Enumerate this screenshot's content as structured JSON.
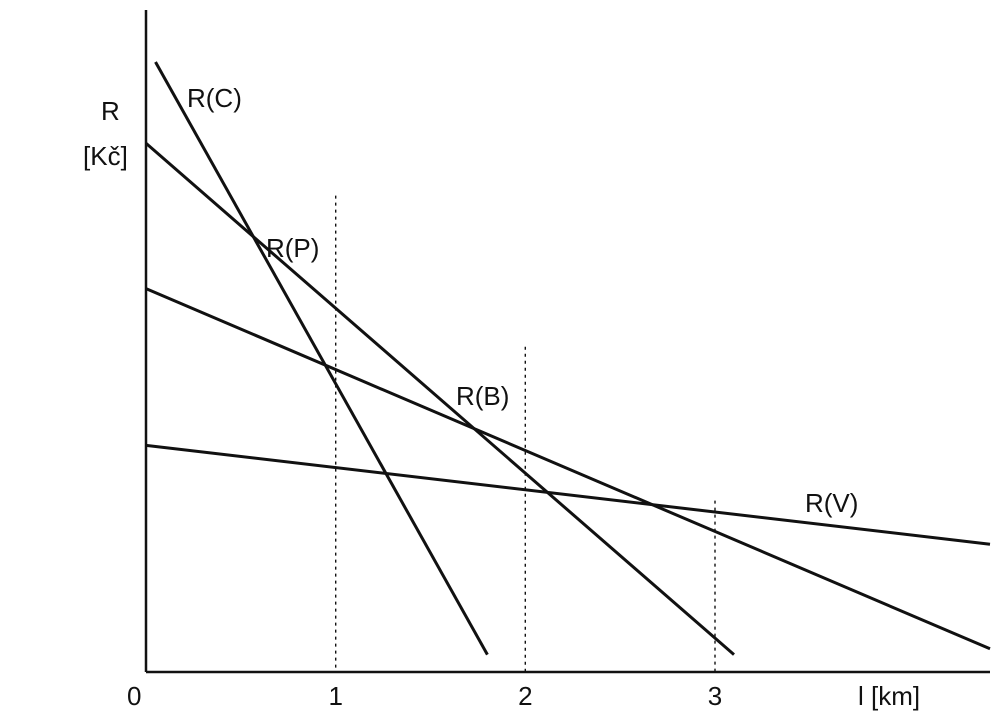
{
  "chart_data": {
    "type": "line",
    "title": "",
    "ylabel_line1": "R",
    "ylabel_line2": "[Kč]",
    "xlabel": "l  [km]",
    "origin_label": "0",
    "x_ticks": [
      {
        "value": 1,
        "label": "1"
      },
      {
        "value": 2,
        "label": "2"
      },
      {
        "value": 3,
        "label": "3"
      }
    ],
    "xlim": [
      0,
      4.45
    ],
    "ylim": [
      0,
      10.5
    ],
    "grid": false,
    "series": [
      {
        "name": "R(C)",
        "points": [
          [
            0.05,
            10.5
          ],
          [
            1.8,
            0.3
          ]
        ]
      },
      {
        "name": "R(P)",
        "points": [
          [
            0.0,
            9.1
          ],
          [
            3.1,
            0.3
          ]
        ]
      },
      {
        "name": "R(B)",
        "points": [
          [
            0.0,
            6.6
          ],
          [
            4.45,
            0.4
          ]
        ]
      },
      {
        "name": "R(V)",
        "points": [
          [
            0.0,
            3.9
          ],
          [
            4.45,
            2.2
          ]
        ]
      }
    ],
    "reference_lines": [
      {
        "x": 1,
        "y": 8.2
      },
      {
        "x": 2,
        "y": 5.6
      },
      {
        "x": 3,
        "y": 2.95
      }
    ]
  }
}
